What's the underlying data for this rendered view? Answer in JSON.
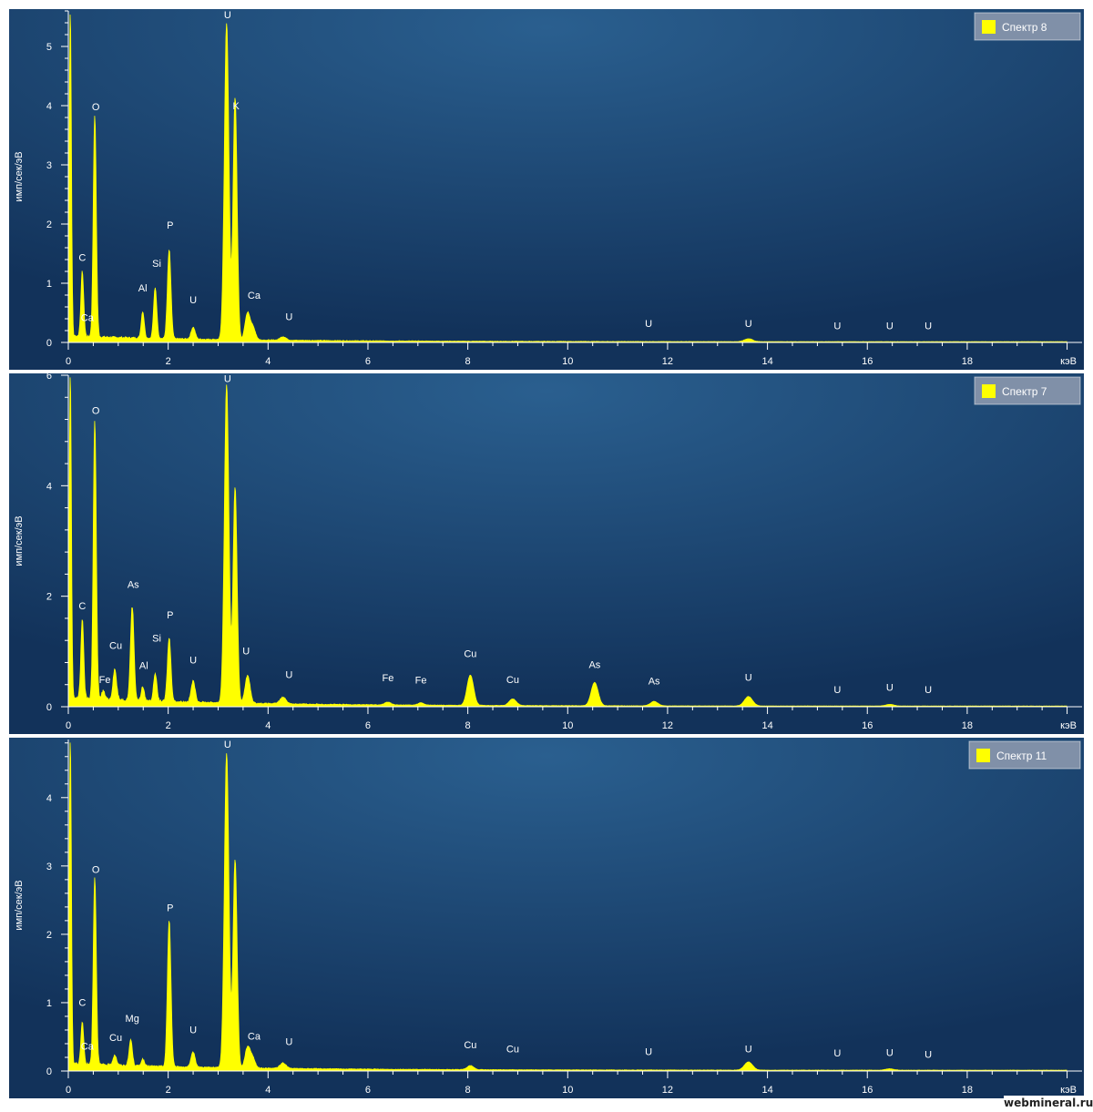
{
  "charts": [
    {
      "type": "area",
      "legend_label": "Спектр 8",
      "ylabel": "имп/сек/эВ",
      "xlabel": "кэВ",
      "xlim": [
        0,
        20.3
      ],
      "ylim": [
        0,
        5.6
      ],
      "xticks": [
        0,
        2,
        4,
        6,
        8,
        10,
        12,
        14,
        16,
        18
      ],
      "yticks": [
        0,
        1,
        2,
        3,
        4,
        5
      ],
      "background": 0.1,
      "peaks": [
        {
          "x": 0.04,
          "y": 5.6,
          "w": 0.022
        },
        {
          "x": 0.28,
          "y": 1.1,
          "w": 0.028
        },
        {
          "x": 0.53,
          "y": 3.75,
          "w": 0.03
        },
        {
          "x": 1.49,
          "y": 0.45,
          "w": 0.03
        },
        {
          "x": 1.74,
          "y": 0.85,
          "w": 0.032
        },
        {
          "x": 2.02,
          "y": 1.5,
          "w": 0.035
        },
        {
          "x": 2.5,
          "y": 0.2,
          "w": 0.04
        },
        {
          "x": 3.17,
          "y": 5.35,
          "w": 0.045
        },
        {
          "x": 3.34,
          "y": 4.1,
          "w": 0.04
        },
        {
          "x": 3.59,
          "y": 0.45,
          "w": 0.05
        },
        {
          "x": 3.7,
          "y": 0.2,
          "w": 0.05
        },
        {
          "x": 4.3,
          "y": 0.06,
          "w": 0.06
        },
        {
          "x": 13.62,
          "y": 0.05,
          "w": 0.08
        }
      ],
      "labels": [
        {
          "text": "C",
          "x": 0.28,
          "y": 1.38
        },
        {
          "text": "Ca",
          "x": 0.38,
          "y": 0.36
        },
        {
          "text": "O",
          "x": 0.55,
          "y": 3.92
        },
        {
          "text": "Al",
          "x": 1.49,
          "y": 0.86
        },
        {
          "text": "Si",
          "x": 1.77,
          "y": 1.28
        },
        {
          "text": "P",
          "x": 2.04,
          "y": 1.92
        },
        {
          "text": "U",
          "x": 2.5,
          "y": 0.66
        },
        {
          "text": "U",
          "x": 3.19,
          "y": 5.48
        },
        {
          "text": "K",
          "x": 3.36,
          "y": 3.94
        },
        {
          "text": "Ca",
          "x": 3.72,
          "y": 0.74
        },
        {
          "text": "U",
          "x": 4.42,
          "y": 0.38
        },
        {
          "text": "U",
          "x": 11.62,
          "y": 0.26
        },
        {
          "text": "U",
          "x": 13.62,
          "y": 0.26
        },
        {
          "text": "U",
          "x": 15.4,
          "y": 0.22
        },
        {
          "text": "U",
          "x": 16.45,
          "y": 0.22
        },
        {
          "text": "U",
          "x": 17.22,
          "y": 0.22
        }
      ]
    },
    {
      "type": "area",
      "legend_label": "Спектр 7",
      "ylabel": "имп/сек/эВ",
      "xlabel": "кэВ",
      "xlim": [
        0,
        20.3
      ],
      "ylim": [
        0,
        6.0
      ],
      "xticks": [
        0,
        2,
        4,
        6,
        8,
        10,
        12,
        14,
        16,
        18
      ],
      "yticks": [
        0,
        2,
        4,
        6
      ],
      "background": 0.16,
      "peaks": [
        {
          "x": 0.04,
          "y": 6.0,
          "w": 0.022
        },
        {
          "x": 0.28,
          "y": 1.45,
          "w": 0.028
        },
        {
          "x": 0.53,
          "y": 5.05,
          "w": 0.03
        },
        {
          "x": 0.7,
          "y": 0.15,
          "w": 0.03
        },
        {
          "x": 0.93,
          "y": 0.55,
          "w": 0.035
        },
        {
          "x": 1.28,
          "y": 1.7,
          "w": 0.035
        },
        {
          "x": 1.49,
          "y": 0.25,
          "w": 0.03
        },
        {
          "x": 1.74,
          "y": 0.5,
          "w": 0.032
        },
        {
          "x": 2.02,
          "y": 1.15,
          "w": 0.035
        },
        {
          "x": 2.5,
          "y": 0.38,
          "w": 0.04
        },
        {
          "x": 3.17,
          "y": 5.75,
          "w": 0.045
        },
        {
          "x": 3.34,
          "y": 3.9,
          "w": 0.04
        },
        {
          "x": 3.59,
          "y": 0.5,
          "w": 0.05
        },
        {
          "x": 4.3,
          "y": 0.12,
          "w": 0.06
        },
        {
          "x": 6.4,
          "y": 0.05,
          "w": 0.06
        },
        {
          "x": 7.06,
          "y": 0.04,
          "w": 0.06
        },
        {
          "x": 8.05,
          "y": 0.55,
          "w": 0.065
        },
        {
          "x": 8.9,
          "y": 0.12,
          "w": 0.07
        },
        {
          "x": 10.54,
          "y": 0.42,
          "w": 0.07
        },
        {
          "x": 11.73,
          "y": 0.08,
          "w": 0.075
        },
        {
          "x": 13.62,
          "y": 0.17,
          "w": 0.08
        },
        {
          "x": 16.45,
          "y": 0.03,
          "w": 0.08
        }
      ],
      "labels": [
        {
          "text": "C",
          "x": 0.28,
          "y": 1.76
        },
        {
          "text": "O",
          "x": 0.55,
          "y": 5.3
        },
        {
          "text": "Fe",
          "x": 0.73,
          "y": 0.43
        },
        {
          "text": "Cu",
          "x": 0.95,
          "y": 1.05
        },
        {
          "text": "As",
          "x": 1.3,
          "y": 2.15
        },
        {
          "text": "Al",
          "x": 1.51,
          "y": 0.68
        },
        {
          "text": "Si",
          "x": 1.77,
          "y": 1.18
        },
        {
          "text": "P",
          "x": 2.04,
          "y": 1.6
        },
        {
          "text": "U",
          "x": 2.5,
          "y": 0.78
        },
        {
          "text": "U",
          "x": 3.19,
          "y": 5.88
        },
        {
          "text": "U",
          "x": 3.56,
          "y": 0.95
        },
        {
          "text": "U",
          "x": 4.42,
          "y": 0.52
        },
        {
          "text": "Fe",
          "x": 6.4,
          "y": 0.46
        },
        {
          "text": "Fe",
          "x": 7.06,
          "y": 0.42
        },
        {
          "text": "Cu",
          "x": 8.05,
          "y": 0.9
        },
        {
          "text": "Cu",
          "x": 8.9,
          "y": 0.43
        },
        {
          "text": "As",
          "x": 10.54,
          "y": 0.7
        },
        {
          "text": "As",
          "x": 11.73,
          "y": 0.4
        },
        {
          "text": "U",
          "x": 13.62,
          "y": 0.47
        },
        {
          "text": "U",
          "x": 15.4,
          "y": 0.25
        },
        {
          "text": "U",
          "x": 16.45,
          "y": 0.29
        },
        {
          "text": "U",
          "x": 17.22,
          "y": 0.25
        }
      ]
    },
    {
      "type": "area",
      "legend_label": "Спектр 11",
      "ylabel": "имп/сек/эВ",
      "xlabel": "кэВ",
      "xlim": [
        0,
        20.3
      ],
      "ylim": [
        0,
        4.85
      ],
      "xticks": [
        0,
        2,
        4,
        6,
        8,
        10,
        12,
        14,
        16,
        18
      ],
      "yticks": [
        0,
        1,
        2,
        3,
        4
      ],
      "background": 0.1,
      "peaks": [
        {
          "x": 0.04,
          "y": 4.85,
          "w": 0.022
        },
        {
          "x": 0.28,
          "y": 0.62,
          "w": 0.028
        },
        {
          "x": 0.53,
          "y": 2.75,
          "w": 0.03
        },
        {
          "x": 0.93,
          "y": 0.15,
          "w": 0.035
        },
        {
          "x": 1.25,
          "y": 0.38,
          "w": 0.032
        },
        {
          "x": 1.49,
          "y": 0.1,
          "w": 0.03
        },
        {
          "x": 2.02,
          "y": 2.15,
          "w": 0.035
        },
        {
          "x": 2.5,
          "y": 0.22,
          "w": 0.04
        },
        {
          "x": 3.17,
          "y": 4.6,
          "w": 0.045
        },
        {
          "x": 3.34,
          "y": 3.05,
          "w": 0.04
        },
        {
          "x": 3.59,
          "y": 0.3,
          "w": 0.05
        },
        {
          "x": 3.69,
          "y": 0.15,
          "w": 0.05
        },
        {
          "x": 4.3,
          "y": 0.08,
          "w": 0.06
        },
        {
          "x": 8.05,
          "y": 0.06,
          "w": 0.065
        },
        {
          "x": 13.62,
          "y": 0.12,
          "w": 0.08
        },
        {
          "x": 16.45,
          "y": 0.02,
          "w": 0.08
        }
      ],
      "labels": [
        {
          "text": "C",
          "x": 0.28,
          "y": 0.95
        },
        {
          "text": "Ca",
          "x": 0.38,
          "y": 0.31
        },
        {
          "text": "O",
          "x": 0.55,
          "y": 2.9
        },
        {
          "text": "Cu",
          "x": 0.95,
          "y": 0.44
        },
        {
          "text": "Mg",
          "x": 1.28,
          "y": 0.72
        },
        {
          "text": "P",
          "x": 2.04,
          "y": 2.34
        },
        {
          "text": "U",
          "x": 2.5,
          "y": 0.55
        },
        {
          "text": "U",
          "x": 3.19,
          "y": 4.73
        },
        {
          "text": "Ca",
          "x": 3.72,
          "y": 0.46
        },
        {
          "text": "U",
          "x": 4.42,
          "y": 0.38
        },
        {
          "text": "Cu",
          "x": 8.05,
          "y": 0.33
        },
        {
          "text": "Cu",
          "x": 8.9,
          "y": 0.27
        },
        {
          "text": "U",
          "x": 11.62,
          "y": 0.23
        },
        {
          "text": "U",
          "x": 13.62,
          "y": 0.27
        },
        {
          "text": "U",
          "x": 15.4,
          "y": 0.21
        },
        {
          "text": "U",
          "x": 16.45,
          "y": 0.22
        },
        {
          "text": "U",
          "x": 17.22,
          "y": 0.19
        }
      ]
    }
  ],
  "watermark": "webmineral.ru",
  "colors": {
    "spectrum": "#ffff00",
    "bg_center": "#2a5f8f",
    "bg_edge": "#12325a",
    "axis": "#ffffff",
    "legend_bg": "#8090a8"
  }
}
